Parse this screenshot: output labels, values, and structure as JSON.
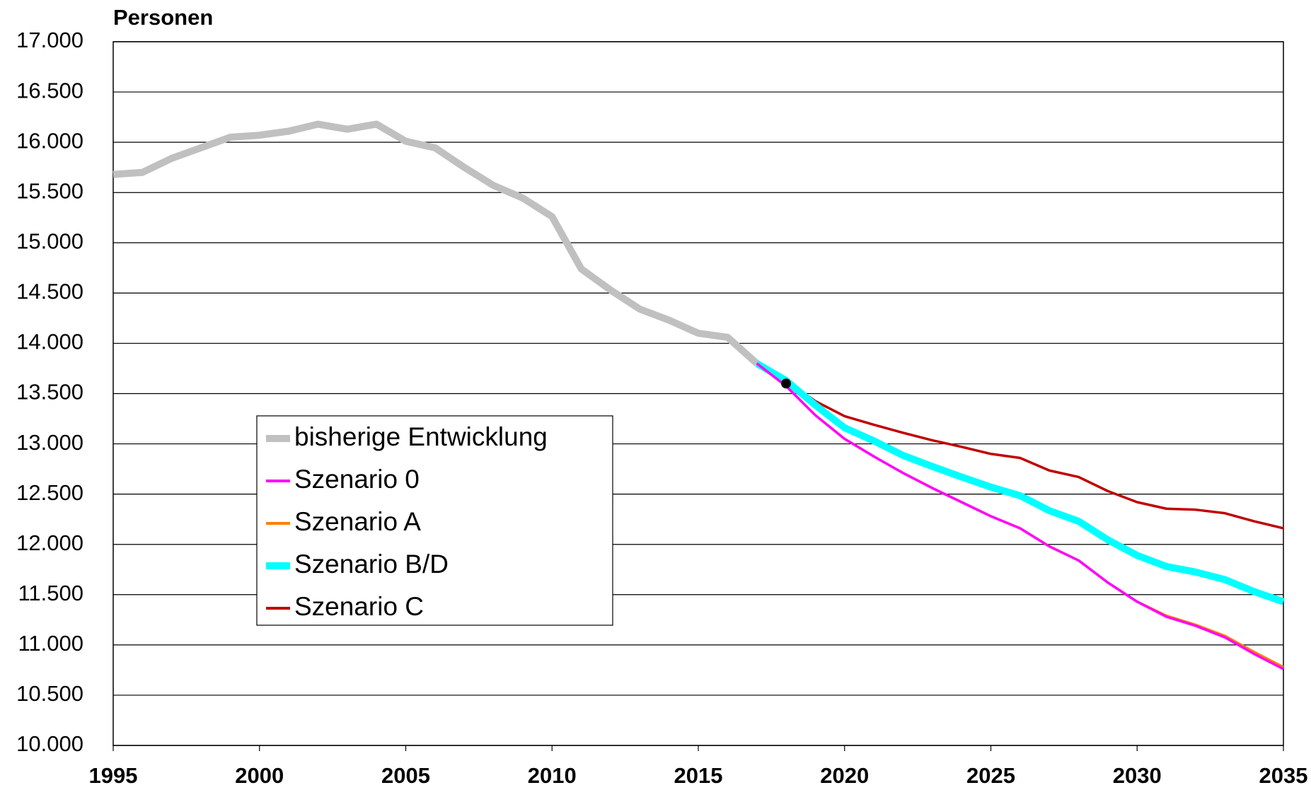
{
  "chart_data": {
    "type": "line",
    "y_label": "Personen",
    "x": [
      1995,
      1996,
      1997,
      1998,
      1999,
      2000,
      2001,
      2002,
      2003,
      2004,
      2005,
      2006,
      2007,
      2008,
      2009,
      2010,
      2011,
      2012,
      2013,
      2014,
      2015,
      2016,
      2017,
      2018,
      2019,
      2020,
      2021,
      2022,
      2023,
      2024,
      2025,
      2026,
      2027,
      2028,
      2029,
      2030,
      2031,
      2032,
      2033,
      2034,
      2035
    ],
    "series": [
      {
        "name": "bisherige Entwicklung",
        "color": "#c0c0c0",
        "values": [
          15680,
          15700,
          15840,
          15945,
          16050,
          16070,
          16110,
          16180,
          16130,
          16180,
          16010,
          15945,
          15750,
          15570,
          15445,
          15260,
          14740,
          14530,
          14340,
          14230,
          14100,
          14060,
          13800,
          null,
          null,
          null,
          null,
          null,
          null,
          null,
          null,
          null,
          null,
          null,
          null,
          null,
          null,
          null,
          null,
          null,
          null
        ]
      },
      {
        "name": "Szenario 0",
        "color": "#ff00ff",
        "values": [
          null,
          null,
          null,
          null,
          null,
          null,
          null,
          null,
          null,
          null,
          null,
          null,
          null,
          null,
          null,
          null,
          null,
          null,
          null,
          null,
          null,
          null,
          13800,
          13575,
          13285,
          13050,
          12875,
          12710,
          12560,
          12420,
          12280,
          12160,
          11980,
          11840,
          11620,
          11430,
          11280,
          11190,
          11075,
          10910,
          10760
        ]
      },
      {
        "name": "Szenario A",
        "color": "#ff8000",
        "values": [
          null,
          null,
          null,
          null,
          null,
          null,
          null,
          null,
          null,
          null,
          null,
          null,
          null,
          null,
          null,
          null,
          null,
          null,
          null,
          null,
          null,
          null,
          13800,
          13575,
          13285,
          13050,
          12875,
          12710,
          12560,
          12420,
          12280,
          12160,
          11980,
          11840,
          11620,
          11430,
          11290,
          11200,
          11090,
          10930,
          10780
        ]
      },
      {
        "name": "Szenario B/D",
        "color": "#00ffff",
        "values": [
          null,
          null,
          null,
          null,
          null,
          null,
          null,
          null,
          null,
          null,
          null,
          null,
          null,
          null,
          null,
          null,
          null,
          null,
          null,
          null,
          null,
          null,
          13800,
          13630,
          13385,
          13160,
          13030,
          12885,
          12775,
          12670,
          12570,
          12485,
          12335,
          12230,
          12045,
          11890,
          11780,
          11725,
          11650,
          11530,
          11430
        ]
      },
      {
        "name": "Szenario C",
        "color": "#c00000",
        "values": [
          null,
          null,
          null,
          null,
          null,
          null,
          null,
          null,
          null,
          null,
          null,
          null,
          null,
          null,
          null,
          null,
          null,
          null,
          null,
          null,
          null,
          null,
          13800,
          13630,
          13425,
          13275,
          13190,
          13110,
          13035,
          12970,
          12900,
          12860,
          12735,
          12670,
          12530,
          12420,
          12355,
          12345,
          12310,
          12230,
          12160
        ]
      }
    ],
    "marker": {
      "x": 2018,
      "y": 13600,
      "color": "#000000"
    },
    "xlim": [
      1995,
      2035
    ],
    "xticks": [
      1995,
      2000,
      2005,
      2010,
      2015,
      2020,
      2025,
      2030,
      2035
    ],
    "ylim": [
      10000,
      17000
    ],
    "yticks": [
      {
        "value": 10000,
        "label": "10.000"
      },
      {
        "value": 10500,
        "label": "10.500"
      },
      {
        "value": 11000,
        "label": "11.000"
      },
      {
        "value": 11500,
        "label": "11.500"
      },
      {
        "value": 12000,
        "label": "12.000"
      },
      {
        "value": 12500,
        "label": "12.500"
      },
      {
        "value": 13000,
        "label": "13.000"
      },
      {
        "value": 13500,
        "label": "13.500"
      },
      {
        "value": 14000,
        "label": "14.000"
      },
      {
        "value": 14500,
        "label": "14.500"
      },
      {
        "value": 15000,
        "label": "15.000"
      },
      {
        "value": 15500,
        "label": "15.500"
      },
      {
        "value": 16000,
        "label": "16.000"
      },
      {
        "value": 16500,
        "label": "16.500"
      },
      {
        "value": 17000,
        "label": "17.000"
      }
    ],
    "grid": true
  }
}
